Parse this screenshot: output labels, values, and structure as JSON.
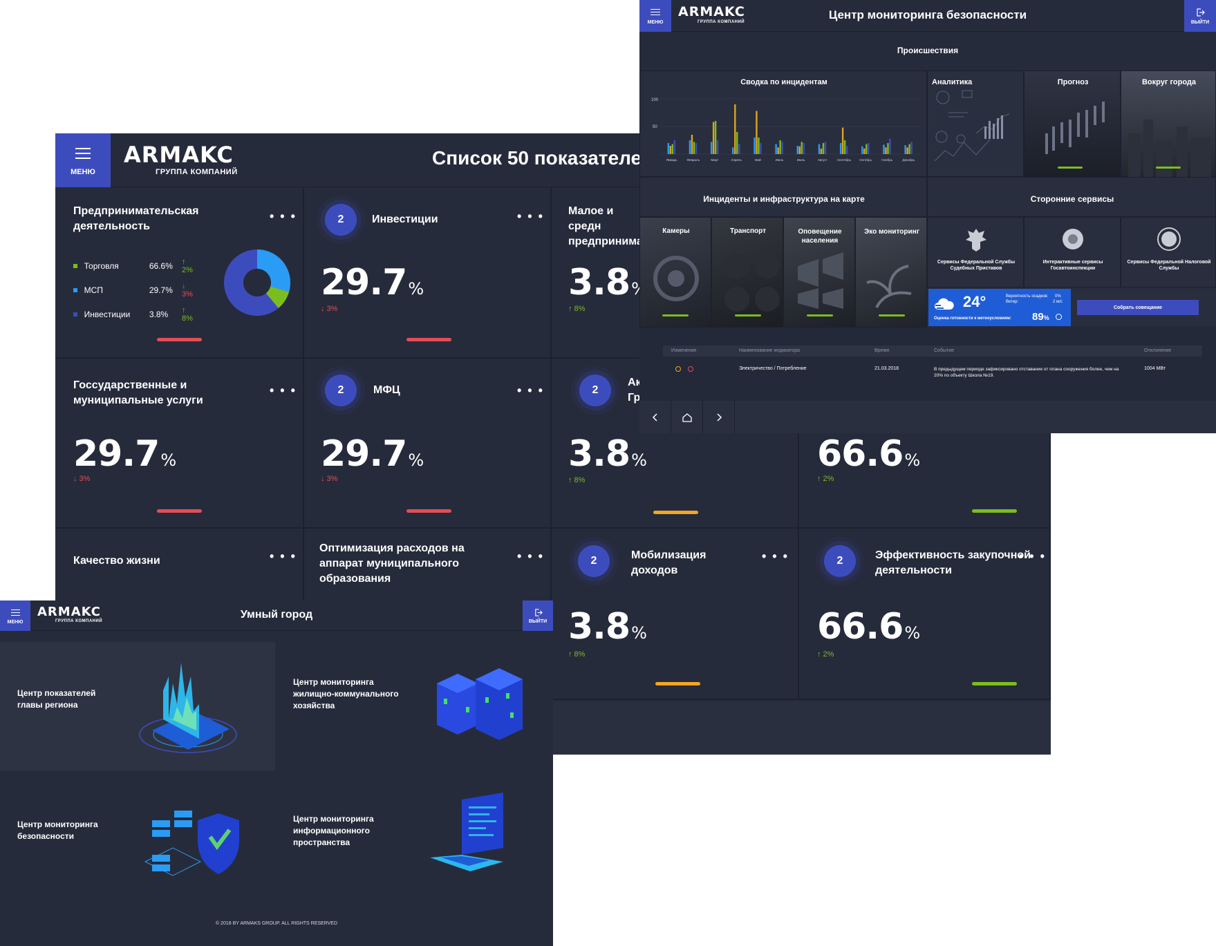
{
  "dashboard": {
    "menu_label": "МЕНЮ",
    "logo": "ARMAKC",
    "logo_sub": "ГРУППА КОМПАНИЙ",
    "title": "Список 50 показателей",
    "tiles": [
      {
        "title": "Предпринимательская деятельность",
        "legend": [
          {
            "label": "Торговля",
            "value": "66.6%",
            "delta": "↑ 2%",
            "color": "#7cbd1e"
          },
          {
            "label": "МСП",
            "value": "29.7%",
            "delta": "↓ 3%",
            "color": "#2b9cf5"
          },
          {
            "label": "Инвестиции",
            "value": "3.8%",
            "delta": "↑ 8%",
            "color": "#3d4cbd"
          }
        ],
        "donut": [
          66.6,
          29.7,
          3.8
        ],
        "bar_color": "#e54d55"
      },
      {
        "badge": "2",
        "title": "Инвестиции",
        "value": "29.7",
        "unit": "%",
        "delta": "↓ 3%",
        "delta_color": "#e54d55",
        "bar_color": "#e54d55"
      },
      {
        "title": "Малое и средн предпринимат",
        "value": "3.8",
        "unit": "%",
        "delta": "↑ 8%",
        "delta_color": "#7cbd1e"
      },
      {
        "title": "Госсударственные и муниципальные услуги",
        "value": "29.7",
        "unit": "%",
        "delta": "↓ 3%",
        "delta_color": "#e54d55",
        "bar_color": "#e54d55"
      },
      {
        "badge": "2",
        "title": "МФЦ",
        "value": "29.7",
        "unit": "%",
        "delta": "↓ 3%",
        "delta_color": "#e54d55",
        "bar_color": "#e54d55"
      },
      {
        "badge": "2",
        "title": "Ак Гр",
        "value": "3.8",
        "unit": "%",
        "delta": "↑ 8%",
        "delta_color": "#7cbd1e",
        "bar_color": "#f5a623"
      },
      {
        "value": "66.6",
        "unit": "%",
        "delta": "↑ 2%",
        "delta_color": "#7cbd1e",
        "bar_color": "#7cbd1e"
      },
      {
        "title": "Качество жизни"
      },
      {
        "title": "Оптимизация расходов на аппарат муниципального образования"
      },
      {
        "badge": "2",
        "title": "Мобилизация доходов",
        "value": "3.8",
        "unit": "%",
        "delta": "↑ 8%",
        "delta_color": "#7cbd1e",
        "bar_color": "#f5a623"
      },
      {
        "badge": "2",
        "title": "Эффективность закупочной деятельности",
        "value": "66.6",
        "unit": "%",
        "delta": "↑ 2%",
        "delta_color": "#7cbd1e",
        "bar_color": "#7cbd1e"
      }
    ],
    "dots": "• • •"
  },
  "security": {
    "menu_label": "МЕНЮ",
    "exit_label": "ВЫЙТИ",
    "logo": "ARMAKC",
    "logo_sub": "ГРУППА КОМПАНИЙ",
    "title": "Центр мониторинга безопасности",
    "incidents": "Происшествия",
    "chart_title": "Сводка по инцидентам",
    "y_ticks": [
      "100",
      "50"
    ],
    "cards_top": [
      "Аналитика",
      "Прогноз",
      "Вокруг города"
    ],
    "map_title": "Инциденты и инфраструктура на карте",
    "map_cards": [
      "Камеры",
      "Транспорт",
      "Оповещение населения",
      "Эко мониторинг"
    ],
    "services_title": "Сторонние сервисы",
    "services": [
      "Сервисы Федеральной Службы Судебных Приставов",
      "Интерактивные сервисы Госавтоинспекции",
      "Сервисы Федеральной Налоговой Службы"
    ],
    "weather": {
      "temp": "24°",
      "precip_label": "Вероятность осадков:",
      "precip": "0%",
      "wind_label": "Ветер:",
      "wind": "2 м/с",
      "ready_label": "Оценка готовности к метеоусловиям:",
      "ready": "89",
      "ready_unit": "%"
    },
    "meeting_button": "Собрать совещание",
    "table": {
      "headers": [
        "Изменение",
        "Наименование индикатора",
        "Время",
        "Событие",
        "Отклонение"
      ],
      "row": [
        "Электричество / Потребление",
        "21.03.2018",
        "В предыдущем периоде зафиксировано отставание от плана сооружения более, чем на 20% по объекту Школа №19.",
        "1004 МВт"
      ]
    }
  },
  "chart_data": {
    "type": "bar",
    "title": "Сводка по инцидентам",
    "categories": [
      "Январь",
      "Февраль",
      "Март",
      "Апрель",
      "Май",
      "Июнь",
      "Июль",
      "Август",
      "Сентябрь",
      "Октябрь",
      "Ноябрь",
      "Декабрь"
    ],
    "series": [
      {
        "values": [
          20,
          25,
          22,
          12,
          30,
          18,
          15,
          18,
          20,
          14,
          17,
          16
        ],
        "color": "#2b9cf5"
      },
      {
        "values": [
          15,
          35,
          58,
          90,
          78,
          12,
          14,
          10,
          48,
          10,
          12,
          12
        ],
        "color": "#e0a41c"
      },
      {
        "values": [
          18,
          22,
          60,
          40,
          30,
          25,
          22,
          20,
          25,
          18,
          20,
          18
        ],
        "color": "#7cbd1e"
      },
      {
        "values": [
          25,
          20,
          25,
          18,
          20,
          22,
          20,
          22,
          15,
          20,
          28,
          22
        ],
        "color": "#3d4cbd"
      }
    ],
    "ylim": [
      0,
      100
    ]
  },
  "smart": {
    "menu_label": "МЕНЮ",
    "exit_label": "ВЫЙТИ",
    "logo": "ARMAKC",
    "logo_sub": "ГРУППА КОМПАНИЙ",
    "title": "Умный город",
    "cells": [
      "Центр показателей главы региона",
      "Центр мониторинга жилищно-коммунального хозяйства",
      "Центр мониторинга безопасности",
      "Центр мониторинга информационного пространства"
    ],
    "footer": "© 2018 BY ARMAKS GROUP. ALL RIGHTS RESERVED"
  }
}
